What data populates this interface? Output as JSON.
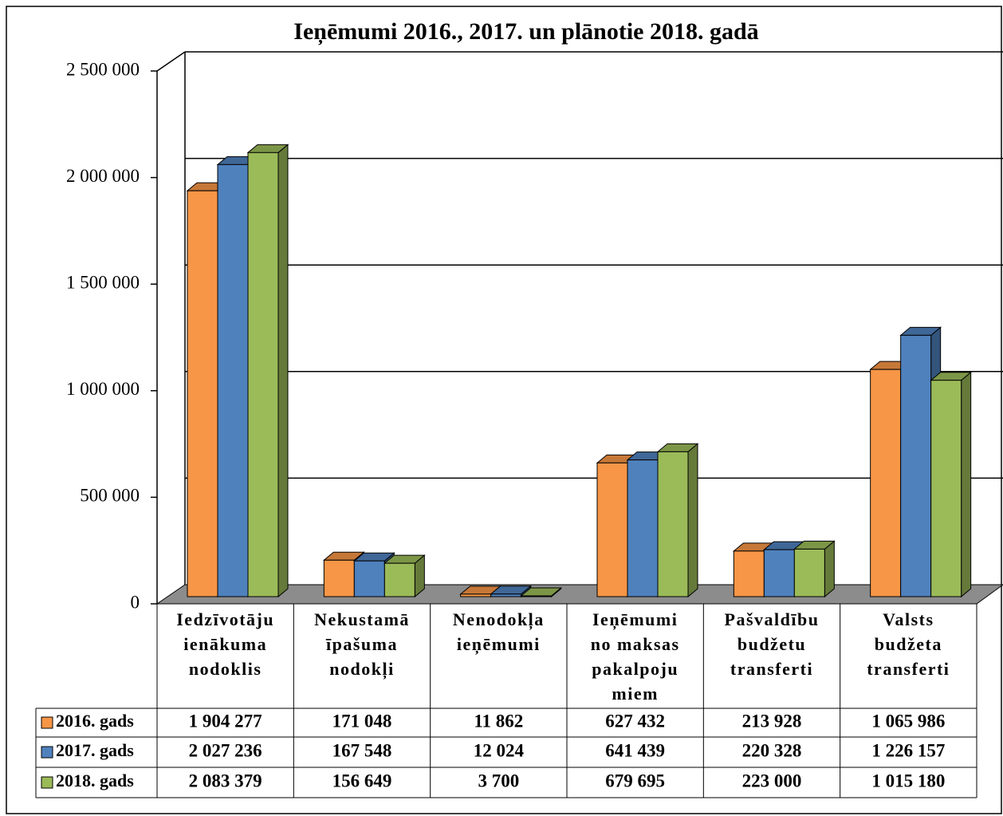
{
  "chart_data": {
    "type": "bar3d",
    "title": "Ieņēmumi 2016., 2017. un plānotie 2018. gadā",
    "categories": [
      [
        "Iedzīvotāju",
        "ienākuma",
        "nodoklis"
      ],
      [
        "Nekustamā",
        "īpašuma",
        "nodokļi"
      ],
      [
        "Nenodokļa",
        "ieņēmumi"
      ],
      [
        "Ieņēmumi",
        "no maksas",
        "pakalpoju",
        "miem"
      ],
      [
        "Pašvaldību",
        "budžetu",
        "transferti"
      ],
      [
        "Valsts",
        "budžeta",
        "transferti"
      ]
    ],
    "series": [
      {
        "name": "2016. gads",
        "color": "#f79646",
        "values": [
          1904277,
          171048,
          11862,
          627432,
          213928,
          1065986
        ],
        "value_labels": [
          "1 904 277",
          "171 048",
          "11 862",
          "627 432",
          "213 928",
          "1 065 986"
        ]
      },
      {
        "name": "2017. gads",
        "color": "#4f81bd",
        "values": [
          2027236,
          167548,
          12024,
          641439,
          220328,
          1226157
        ],
        "value_labels": [
          "2 027 236",
          "167 548",
          "12 024",
          "641 439",
          "220 328",
          "1 226 157"
        ]
      },
      {
        "name": "2018. gads",
        "color": "#9bbb59",
        "values": [
          2083379,
          156649,
          3700,
          679695,
          223000,
          1015180
        ],
        "value_labels": [
          "2 083 379",
          "156 649",
          "3 700",
          "679 695",
          "223 000",
          "1 015 180"
        ]
      }
    ],
    "ylim": [
      0,
      2500000
    ],
    "yticks": [
      0,
      {
        "value": 500000,
        "label": "500 000"
      },
      {
        "value": 1000000,
        "label": "1 000 000"
      },
      {
        "value": 1500000,
        "label": "1 500 000"
      },
      {
        "value": 2000000,
        "label": "2 000 000"
      },
      {
        "value": 2500000,
        "label": "2 500 000"
      }
    ],
    "grid": true
  }
}
